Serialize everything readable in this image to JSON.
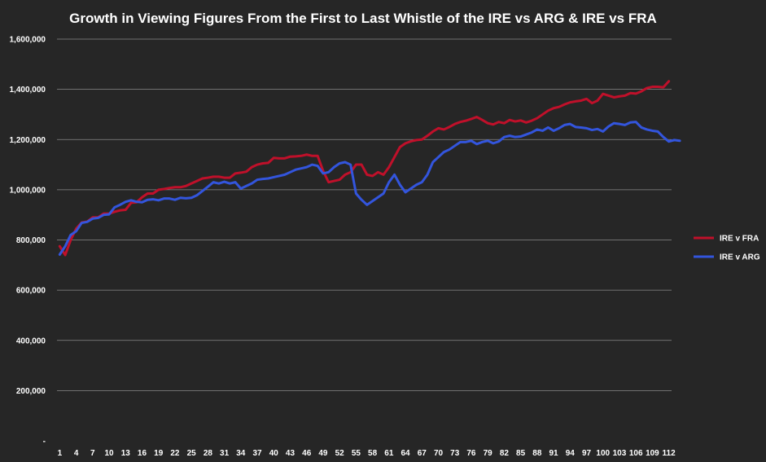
{
  "chart_data": {
    "type": "line",
    "title": "Growth in Viewing Figures From the First to Last Whistle of the IRE vs ARG & IRE vs FRA",
    "xlabel": "",
    "ylabel": "",
    "ylim": [
      0,
      1600000
    ],
    "y_ticks": [
      0,
      200000,
      400000,
      600000,
      800000,
      1000000,
      1200000,
      1400000,
      1600000
    ],
    "y_tick_labels": [
      "-",
      "200,000",
      "400,000",
      "600,000",
      "800,000",
      "1,000,000",
      "1,200,000",
      "1,400,000",
      "1,600,000"
    ],
    "x_range": [
      1,
      112
    ],
    "x_tick_labels": [
      "1",
      "4",
      "7",
      "10",
      "13",
      "16",
      "19",
      "22",
      "25",
      "28",
      "31",
      "34",
      "37",
      "40",
      "43",
      "46",
      "49",
      "52",
      "55",
      "58",
      "61",
      "64",
      "67",
      "70",
      "73",
      "76",
      "79",
      "82",
      "85",
      "88",
      "91",
      "94",
      "97",
      "100",
      "103",
      "106",
      "109",
      "112"
    ],
    "grid": "horizontal",
    "legend": "right",
    "series": [
      {
        "name": "IRE v FRA",
        "color": "#c0102a",
        "values": [
          775000,
          740000,
          800000,
          845000,
          870000,
          873000,
          890000,
          890000,
          905000,
          905000,
          912000,
          918000,
          920000,
          948000,
          950000,
          970000,
          985000,
          985000,
          1000000,
          1003000,
          1007000,
          1010000,
          1010000,
          1015000,
          1025000,
          1035000,
          1045000,
          1048000,
          1052000,
          1052000,
          1048000,
          1048000,
          1065000,
          1068000,
          1072000,
          1090000,
          1100000,
          1105000,
          1107000,
          1127000,
          1125000,
          1125000,
          1132000,
          1133000,
          1135000,
          1140000,
          1135000,
          1135000,
          1075000,
          1030000,
          1035000,
          1040000,
          1060000,
          1070000,
          1100000,
          1100000,
          1060000,
          1055000,
          1070000,
          1060000,
          1090000,
          1130000,
          1170000,
          1185000,
          1193000,
          1198000,
          1200000,
          1215000,
          1232000,
          1245000,
          1240000,
          1250000,
          1262000,
          1270000,
          1275000,
          1282000,
          1290000,
          1278000,
          1265000,
          1260000,
          1270000,
          1265000,
          1278000,
          1272000,
          1276000,
          1268000,
          1275000,
          1285000,
          1300000,
          1315000,
          1325000,
          1330000,
          1340000,
          1348000,
          1352000,
          1355000,
          1362000,
          1345000,
          1355000,
          1382000,
          1375000,
          1368000,
          1372000,
          1375000,
          1385000,
          1383000,
          1392000,
          1405000,
          1410000,
          1410000,
          1408000,
          1432000
        ]
      },
      {
        "name": "IRE v ARG",
        "color": "#3355dd",
        "values": [
          742000,
          775000,
          820000,
          835000,
          868000,
          872000,
          885000,
          888000,
          900000,
          902000,
          930000,
          940000,
          952000,
          958000,
          952000,
          950000,
          960000,
          962000,
          958000,
          965000,
          965000,
          960000,
          968000,
          966000,
          968000,
          978000,
          995000,
          1012000,
          1030000,
          1025000,
          1032000,
          1025000,
          1030000,
          1005000,
          1015000,
          1025000,
          1040000,
          1043000,
          1045000,
          1050000,
          1055000,
          1060000,
          1070000,
          1080000,
          1085000,
          1090000,
          1100000,
          1095000,
          1065000,
          1070000,
          1090000,
          1105000,
          1110000,
          1100000,
          985000,
          960000,
          940000,
          955000,
          970000,
          985000,
          1030000,
          1060000,
          1020000,
          990000,
          1005000,
          1020000,
          1030000,
          1060000,
          1110000,
          1130000,
          1150000,
          1160000,
          1175000,
          1190000,
          1190000,
          1195000,
          1182000,
          1190000,
          1195000,
          1185000,
          1192000,
          1210000,
          1215000,
          1210000,
          1212000,
          1220000,
          1228000,
          1240000,
          1235000,
          1248000,
          1235000,
          1245000,
          1258000,
          1262000,
          1250000,
          1248000,
          1245000,
          1238000,
          1242000,
          1232000,
          1252000,
          1265000,
          1262000,
          1258000,
          1268000,
          1270000,
          1248000,
          1240000,
          1235000,
          1232000,
          1210000,
          1192000,
          1198000,
          1195000
        ]
      }
    ]
  }
}
